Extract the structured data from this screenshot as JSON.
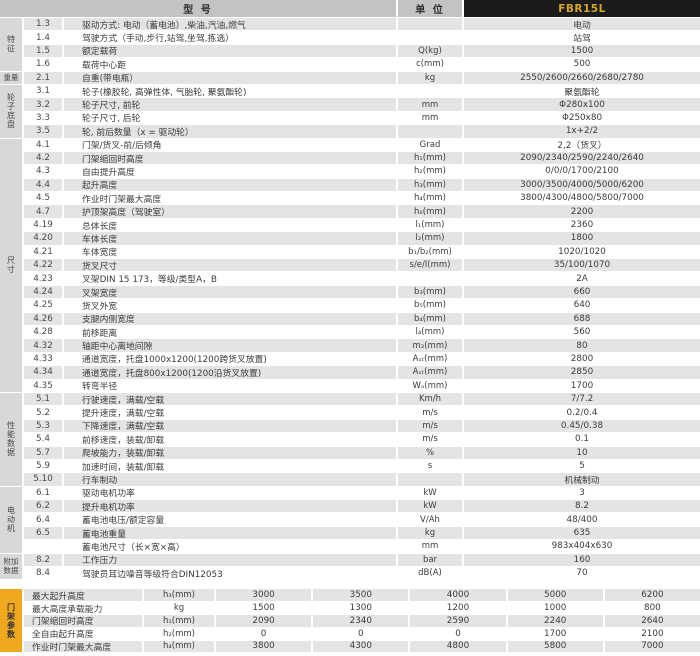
{
  "colors": {
    "header_dark": "#1b1b1b",
    "model_gold_text": "#d7a62b",
    "mast_tab_gold": "#f0a81f",
    "header_gray": "#c3c3c5",
    "row_shade_gray": "#e4e4e6",
    "category_gray": "#d8d8da"
  },
  "header": {
    "model_label": "型 号",
    "unit_label": "单 位",
    "model_value": "FBR15L"
  },
  "sections": [
    {
      "label": "特征",
      "orient": "v",
      "rows": [
        {
          "num": "1.3",
          "desc": "驱动方式: 电动（蓄电池）,柴油,汽油,燃气",
          "unit": "",
          "value": "电动"
        },
        {
          "num": "1.4",
          "desc": "驾驶方式（手动,步行,站驾,坐驾,拣选）",
          "unit": "",
          "value": "站驾"
        },
        {
          "num": "1.5",
          "desc": "额定载荷",
          "unit": "Q(kg)",
          "value": "1500"
        },
        {
          "num": "1.6",
          "desc": "载荷中心距",
          "unit": "c(mm)",
          "value": "500"
        }
      ]
    },
    {
      "label": "重量",
      "orient": "h",
      "rows": [
        {
          "num": "2.1",
          "desc": "自重(带电瓶）",
          "unit": "kg",
          "value": "2550/2600/2660/2680/2780"
        }
      ]
    },
    {
      "label": "轮子底盘",
      "orient": "v",
      "rows": [
        {
          "num": "3.1",
          "desc": "轮子(橡胶轮, 高弹性体, 气胎轮, 聚氨酯轮)",
          "unit": "",
          "value": "聚氨酯轮"
        },
        {
          "num": "3.2",
          "desc": "轮子尺寸, 前轮",
          "unit": "mm",
          "value": "Φ280x100"
        },
        {
          "num": "3.3",
          "desc": "轮子尺寸, 后轮",
          "unit": "mm",
          "value": "Φ250x80"
        },
        {
          "num": "3.5",
          "desc": "轮, 前后数量（x = 驱动轮）",
          "unit": "",
          "value": "1x+2/2"
        }
      ]
    },
    {
      "label": "尺寸",
      "orient": "v",
      "rows": [
        {
          "num": "4.1",
          "desc": "门架/货叉-前/后倾角",
          "unit": "Grad",
          "value": "2,2（货叉）"
        },
        {
          "num": "4.2",
          "desc": "门架缩回时高度",
          "unit": "h₁(mm)",
          "value": "2090/2340/2590/2240/2640"
        },
        {
          "num": "4.3",
          "desc": "自由提升高度",
          "unit": "h₂(mm)",
          "value": "0/0/0/1700/2100"
        },
        {
          "num": "4.4",
          "desc": "起升高度",
          "unit": "h₃(mm)",
          "value": "3000/3500/4000/5000/6200"
        },
        {
          "num": "4.5",
          "desc": "作业时门架最大高度",
          "unit": "h₄(mm)",
          "value": "3800/4300/4800/5800/7000"
        },
        {
          "num": "4.7",
          "desc": "护顶架高度（驾驶室）",
          "unit": "h₆(mm)",
          "value": "2200"
        },
        {
          "num": "4.19",
          "desc": "总体长度",
          "unit": "l₁(mm)",
          "value": "2360"
        },
        {
          "num": "4.20",
          "desc": "车体长度",
          "unit": "l₂(mm)",
          "value": "1800"
        },
        {
          "num": "4.21",
          "desc": "车体宽度",
          "unit": "b₁/b₂(mm)",
          "value": "1020/1020"
        },
        {
          "num": "4.22",
          "desc": "货叉尺寸",
          "unit": "s/e/l(mm)",
          "value": "35/100/1070"
        },
        {
          "num": "4.23",
          "desc": "叉架DIN 15 173，等级/类型A，B",
          "unit": "",
          "value": "2A"
        },
        {
          "num": "4.24",
          "desc": "叉架宽度",
          "unit": "b₃(mm)",
          "value": "660"
        },
        {
          "num": "4.25",
          "desc": "货叉外宽",
          "unit": "b₅(mm)",
          "value": "640"
        },
        {
          "num": "4.26",
          "desc": "支腿内侧宽度",
          "unit": "b₄(mm)",
          "value": "688"
        },
        {
          "num": "4.28",
          "desc": "前移距离",
          "unit": "l₄(mm)",
          "value": "560"
        },
        {
          "num": "4.32",
          "desc": "轴距中心离地间隙",
          "unit": "m₂(mm)",
          "value": "80"
        },
        {
          "num": "4.33",
          "desc": "通道宽度，托盘1000x1200(1200跨货叉放置)",
          "unit": "Aₛₜ(mm)",
          "value": "2800"
        },
        {
          "num": "4.34",
          "desc": "通道宽度，托盘800x1200(1200沿货叉放置)",
          "unit": "Aₛₜ(mm)",
          "value": "2850"
        },
        {
          "num": "4.35",
          "desc": "转弯半径",
          "unit": "Wₐ(mm)",
          "value": "1700"
        }
      ]
    },
    {
      "label": "性能数据",
      "orient": "v",
      "rows": [
        {
          "num": "5.1",
          "desc": "行驶速度，满载/空载",
          "unit": "Km/h",
          "value": "7/7.2"
        },
        {
          "num": "5.2",
          "desc": "提升速度，满载/空载",
          "unit": "m/s",
          "value": "0.2/0.4"
        },
        {
          "num": "5.3",
          "desc": "下降速度，满载/空载",
          "unit": "m/s",
          "value": "0.45/0.38"
        },
        {
          "num": "5.4",
          "desc": "前移速度，装载/卸载",
          "unit": "m/s",
          "value": "0.1"
        },
        {
          "num": "5.7",
          "desc": "爬坡能力，装载/卸载",
          "unit": "%",
          "value": "10"
        },
        {
          "num": "5.9",
          "desc": "加速时间，装载/卸载",
          "unit": "s",
          "value": "5"
        },
        {
          "num": "5.10",
          "desc": "行车制动",
          "unit": "",
          "value": "机械制动"
        }
      ]
    },
    {
      "label": "电动机",
      "orient": "v",
      "rows": [
        {
          "num": "6.1",
          "desc": "驱动电机功率",
          "unit": "kW",
          "value": "3"
        },
        {
          "num": "6.2",
          "desc": "提升电机功率",
          "unit": "kW",
          "value": "8.2"
        },
        {
          "num": "6.4",
          "desc": "蓄电池电压/额定容量",
          "unit": "V/Ah",
          "value": "48/400"
        },
        {
          "num": "6.5",
          "desc": "蓄电池重量",
          "unit": "kg",
          "value": "635"
        },
        {
          "num": "",
          "desc": "蓄电池尺寸（长×宽×高）",
          "unit": "mm",
          "value": "983x404x630"
        }
      ]
    },
    {
      "label": "附加数据",
      "orient": "h",
      "rows": [
        {
          "num": "8.2",
          "desc": "工作压力",
          "unit": "bar",
          "value": "160"
        },
        {
          "num": "8.4",
          "desc": "驾驶员耳边噪音等级符合DIN12053",
          "unit": "dB(A)",
          "value": "70"
        }
      ]
    }
  ],
  "mast": {
    "label": "门架参数",
    "rows": [
      {
        "desc": "最大起升高度",
        "unit": "h₃(mm)",
        "values": [
          "3000",
          "3500",
          "4000",
          "5000",
          "6200"
        ]
      },
      {
        "desc": "最大高度承载能力",
        "unit": "kg",
        "values": [
          "1500",
          "1300",
          "1200",
          "1000",
          "800"
        ]
      },
      {
        "desc": "门架缩回时高度",
        "unit": "h₁(mm)",
        "values": [
          "2090",
          "2340",
          "2590",
          "2240",
          "2640"
        ]
      },
      {
        "desc": "全自由起升高度",
        "unit": "h₂(mm)",
        "values": [
          "0",
          "0",
          "0",
          "1700",
          "2100"
        ]
      },
      {
        "desc": "作业时门架最大高度",
        "unit": "h₄(mm)",
        "values": [
          "3800",
          "4300",
          "4800",
          "5800",
          "7000"
        ]
      }
    ]
  }
}
